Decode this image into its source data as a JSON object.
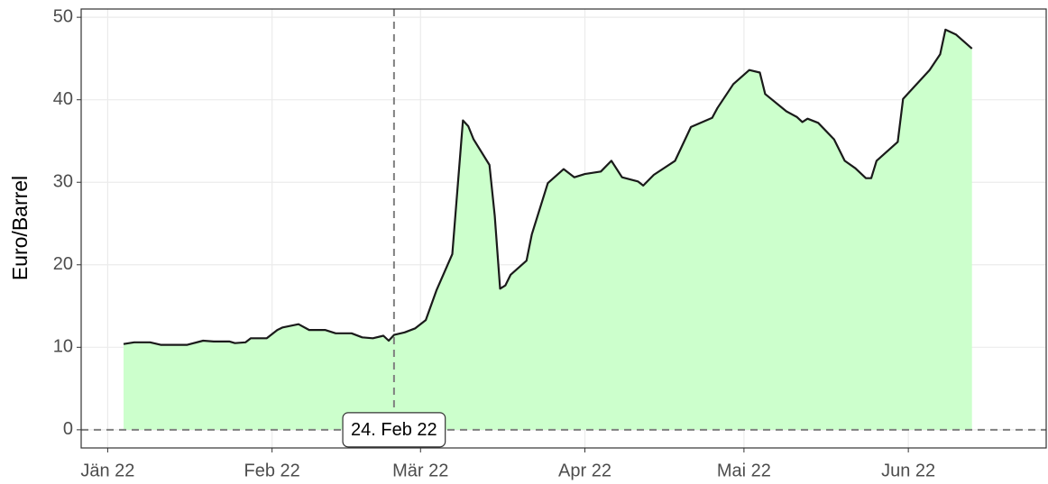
{
  "chart_data": {
    "type": "area",
    "ylabel": "Euro/Barrel",
    "x": [
      3,
      5,
      8,
      10,
      15,
      18,
      20,
      23,
      24,
      26,
      27,
      30,
      32,
      33,
      36,
      38,
      41,
      43,
      46,
      48,
      50,
      52,
      53,
      54,
      56,
      58,
      60,
      62,
      65,
      67,
      68,
      69,
      72,
      73,
      74,
      75,
      76,
      79,
      80,
      83,
      86,
      88,
      90,
      93,
      95,
      97,
      100,
      101,
      103,
      107,
      110,
      114,
      115,
      118,
      121,
      123,
      124,
      128,
      130,
      131,
      132,
      134,
      137,
      139,
      141,
      143,
      144,
      145,
      149,
      150,
      155,
      157,
      158,
      160,
      163
    ],
    "values": [
      10.4,
      10.6,
      10.6,
      10.3,
      10.3,
      10.8,
      10.7,
      10.7,
      10.5,
      10.6,
      11.1,
      11.1,
      12.1,
      12.4,
      12.8,
      12.1,
      12.1,
      11.7,
      11.7,
      11.2,
      11.1,
      11.4,
      10.8,
      11.5,
      11.8,
      12.3,
      13.3,
      16.9,
      21.3,
      37.5,
      36.8,
      35.2,
      32.1,
      25.9,
      17.1,
      17.5,
      18.8,
      20.5,
      23.7,
      29.9,
      31.6,
      30.6,
      31.0,
      31.3,
      32.6,
      30.6,
      30.1,
      29.6,
      30.9,
      32.6,
      36.7,
      37.8,
      39.0,
      41.9,
      43.6,
      43.3,
      40.7,
      38.6,
      37.9,
      37.3,
      37.7,
      37.2,
      35.2,
      32.6,
      31.7,
      30.5,
      30.5,
      32.6,
      34.9,
      40.1,
      43.6,
      45.5,
      48.5,
      47.9,
      46.2
    ],
    "fill": "#ccffcc",
    "color": "#1a1a1a",
    "xlim": [
      -5,
      177
    ],
    "xticks": [
      {
        "value": 0,
        "label": "Jän 22"
      },
      {
        "value": 31,
        "label": "Feb 22"
      },
      {
        "value": 59,
        "label": "Mär 22"
      },
      {
        "value": 90,
        "label": "Apr 22"
      },
      {
        "value": 120,
        "label": "Mai 22"
      },
      {
        "value": 151,
        "label": "Jun 22"
      }
    ],
    "ylim": [
      -2.2,
      51
    ],
    "yticks": [
      0,
      10,
      20,
      30,
      40,
      50
    ],
    "grid": true,
    "hline": 0,
    "vline": {
      "value": 54,
      "label": "24. Feb 22"
    }
  }
}
